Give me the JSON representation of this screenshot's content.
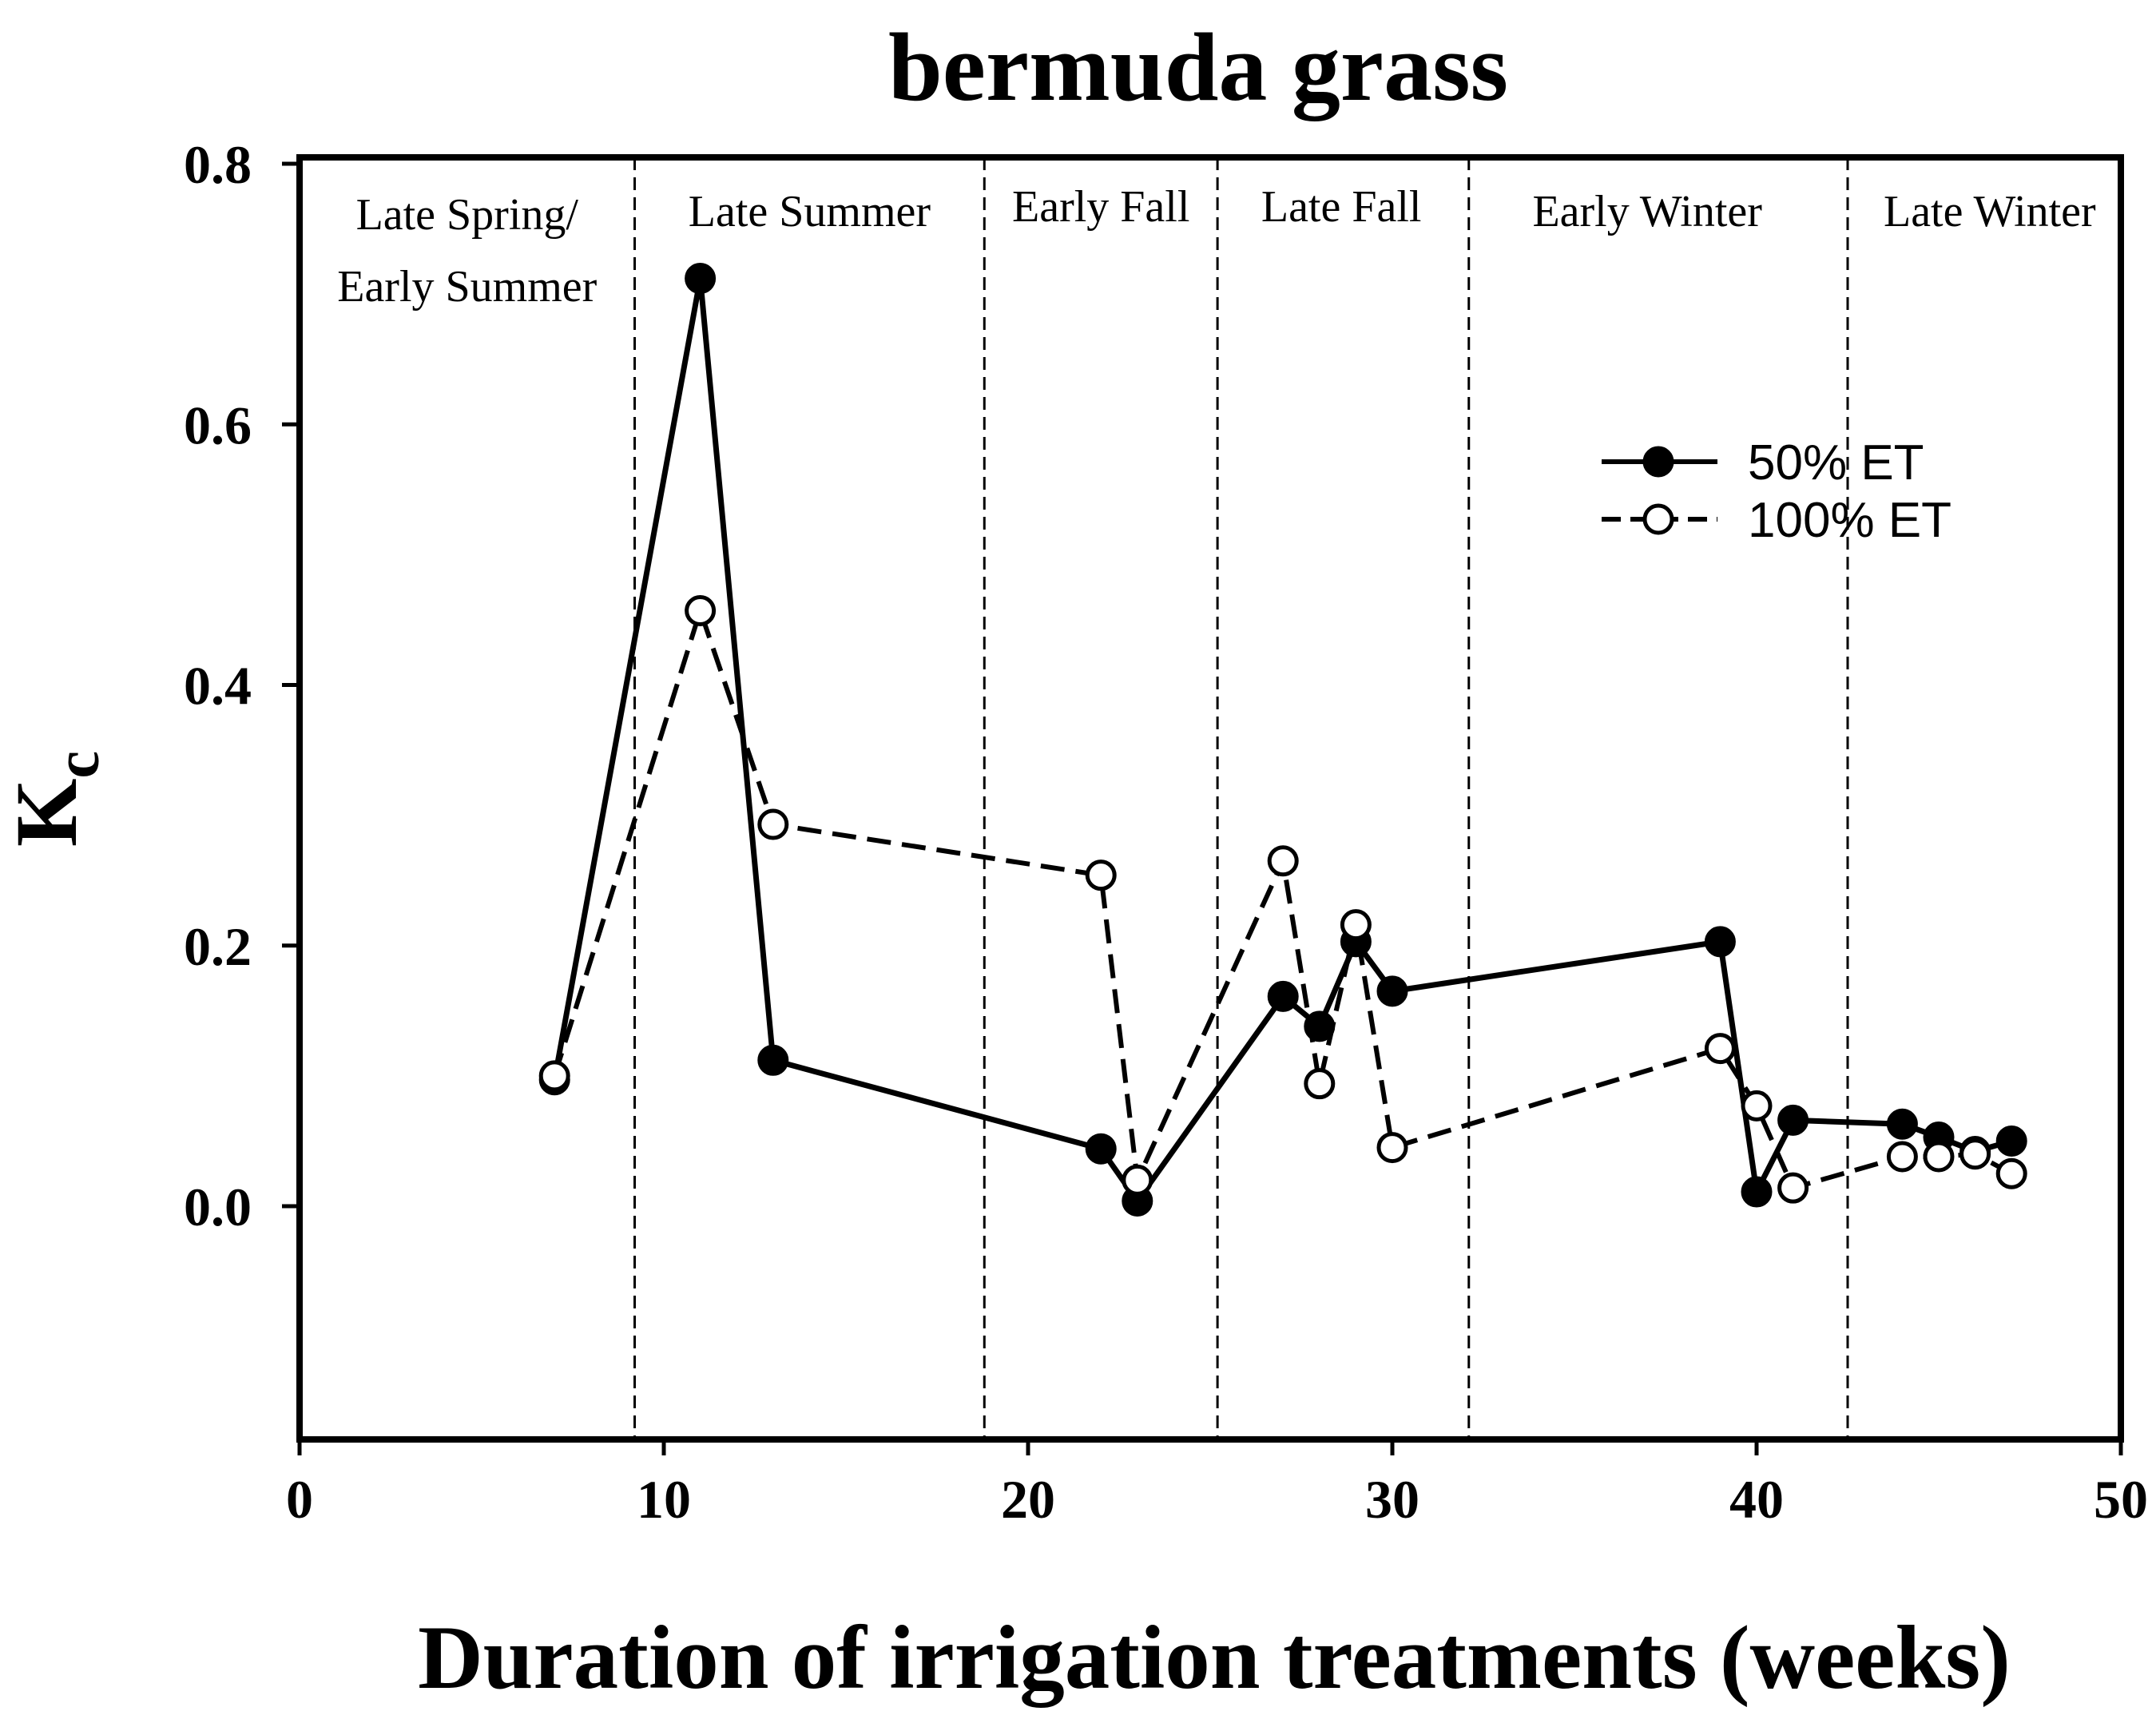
{
  "chart_data": {
    "type": "line",
    "title": "bermuda grass",
    "xlabel": "Duration of irrigation treatments (weeks)",
    "ylabel_main": "K",
    "ylabel_sub": "c",
    "xlim": [
      0,
      50
    ],
    "ylim": [
      -0.18,
      0.8
    ],
    "xticks": [
      0,
      10,
      20,
      30,
      40,
      50
    ],
    "xtick_labels": [
      "0",
      "10",
      "20",
      "30",
      "40",
      "50"
    ],
    "yticks": [
      0.0,
      0.2,
      0.4,
      0.6,
      0.8
    ],
    "ytick_labels": [
      "0.0",
      "0.2",
      "0.4",
      "0.6",
      "0.8"
    ],
    "grid": false,
    "season_boundaries": [
      9.2,
      18.8,
      25.2,
      32.1,
      42.5
    ],
    "seasons": [
      {
        "lines": [
          "Late Spring/",
          "Early Summer"
        ],
        "x": 4.6
      },
      {
        "lines": [
          "Late Summer"
        ],
        "x": 14.0
      },
      {
        "lines": [
          "Early Fall"
        ],
        "x": 22.0
      },
      {
        "lines": [
          "Late Fall"
        ],
        "x": 28.6
      },
      {
        "lines": [
          "Early Winter"
        ],
        "x": 37.0
      },
      {
        "lines": [
          "Late Winter"
        ],
        "x": 46.4
      }
    ],
    "legend": {
      "position": "top-right",
      "entries": [
        "50% ET",
        "100% ET"
      ]
    },
    "series": [
      {
        "name": "50% ET",
        "style": "solid",
        "marker": "filled-circle",
        "x": [
          7,
          11,
          13,
          22,
          23,
          27,
          28,
          29,
          30,
          39,
          40,
          41,
          44,
          45,
          46,
          47
        ],
        "y": [
          0.097,
          0.712,
          0.112,
          0.044,
          0.004,
          0.161,
          0.138,
          0.203,
          0.165,
          0.203,
          0.011,
          0.066,
          0.063,
          0.053,
          0.042,
          0.05
        ]
      },
      {
        "name": "100% ET",
        "style": "dashed",
        "marker": "open-circle",
        "x": [
          7,
          11,
          13,
          22,
          23,
          27,
          28,
          29,
          30,
          39,
          40,
          41,
          44,
          45,
          46,
          47
        ],
        "y": [
          0.1,
          0.457,
          0.293,
          0.254,
          0.02,
          0.265,
          0.094,
          0.216,
          0.045,
          0.121,
          0.077,
          0.014,
          0.038,
          0.038,
          0.04,
          0.025
        ]
      }
    ],
    "colors": {
      "line": "#000000",
      "background": "#ffffff",
      "marker_fill_open": "#ffffff"
    }
  }
}
